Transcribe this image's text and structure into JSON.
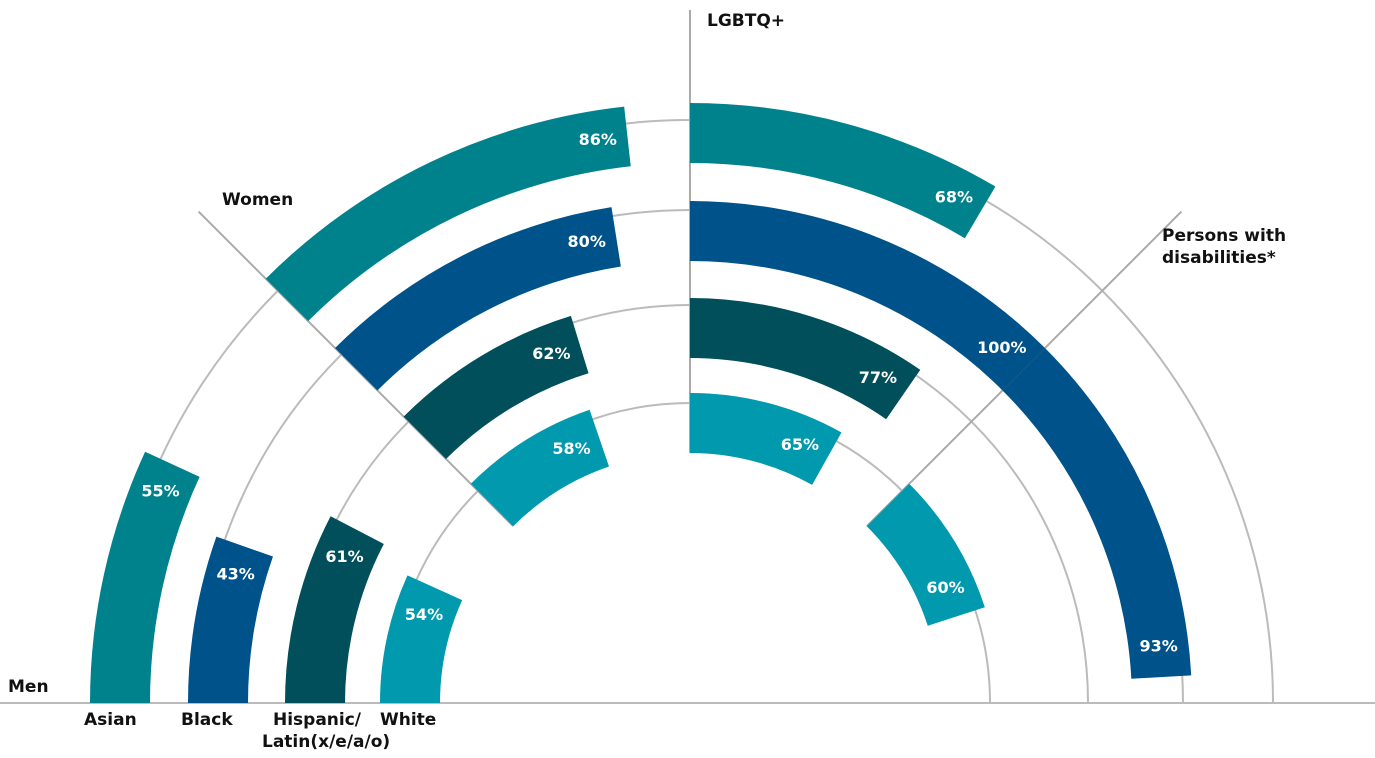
{
  "chart_data": {
    "type": "radial_bar",
    "categories": [
      "Men",
      "Women",
      "LGBTQ+",
      "Persons with disabilities*"
    ],
    "series": [
      {
        "name": "Asian",
        "color": "#00828c",
        "values": [
          55,
          86,
          68,
          null
        ],
        "value_labels": [
          "55%",
          "86%",
          "68%",
          null
        ]
      },
      {
        "name": "Black",
        "color": "#00538a",
        "values": [
          43,
          80,
          100,
          93
        ],
        "value_labels": [
          "43%",
          "80%",
          "100%",
          "93%"
        ]
      },
      {
        "name": "Hispanic/ Latin(x/e/a/o)",
        "color": "#004f5a",
        "values": [
          61,
          62,
          77,
          null
        ],
        "value_labels": [
          "61%",
          "62%",
          "77%",
          null
        ]
      },
      {
        "name": "White",
        "color": "#0099ad",
        "values": [
          54,
          58,
          65,
          60
        ],
        "value_labels": [
          "54%",
          "58%",
          "65%",
          "60%"
        ]
      }
    ],
    "ylim": [
      0,
      100
    ]
  }
}
